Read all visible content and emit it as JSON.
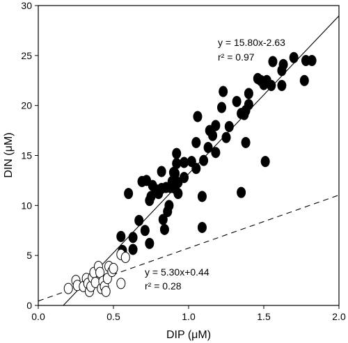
{
  "chart_data": {
    "type": "scatter",
    "xlabel": "DIP (μM)",
    "ylabel": "DIN (μM)",
    "xlim": [
      0,
      2
    ],
    "ylim": [
      0,
      30
    ],
    "xticks": [
      "0.0",
      "0.5",
      "1.0",
      "1.5",
      "2.0"
    ],
    "yticks": [
      "0",
      "5",
      "10",
      "15",
      "20",
      "25",
      "30"
    ],
    "grid": false,
    "series": [
      {
        "marker": "filled-circle",
        "color": "#000000",
        "points": [
          [
            0.55,
            6.9
          ],
          [
            0.56,
            5.5
          ],
          [
            0.6,
            11.2
          ],
          [
            0.63,
            6.8
          ],
          [
            0.63,
            5.6
          ],
          [
            0.67,
            8.5
          ],
          [
            0.69,
            12.4
          ],
          [
            0.71,
            7.5
          ],
          [
            0.72,
            12.5
          ],
          [
            0.74,
            10.5
          ],
          [
            0.74,
            6.2
          ],
          [
            0.75,
            10.9
          ],
          [
            0.76,
            12.0
          ],
          [
            0.78,
            11.6
          ],
          [
            0.8,
            11.2
          ],
          [
            0.82,
            13.4
          ],
          [
            0.82,
            11.7
          ],
          [
            0.83,
            8.6
          ],
          [
            0.84,
            7.6
          ],
          [
            0.85,
            11.8
          ],
          [
            0.86,
            9.4
          ],
          [
            0.87,
            10.0
          ],
          [
            0.88,
            11.8
          ],
          [
            0.89,
            12.4
          ],
          [
            0.9,
            13.3
          ],
          [
            0.91,
            11.7
          ],
          [
            0.91,
            13.2
          ],
          [
            0.92,
            14.2
          ],
          [
            0.92,
            15.2
          ],
          [
            0.93,
            12.3
          ],
          [
            0.93,
            11.2
          ],
          [
            0.97,
            14.3
          ],
          [
            0.97,
            12.8
          ],
          [
            1.02,
            14.4
          ],
          [
            1.05,
            13.7
          ],
          [
            1.05,
            16.3
          ],
          [
            1.06,
            18.9
          ],
          [
            1.09,
            10.9
          ],
          [
            1.09,
            7.8
          ],
          [
            1.1,
            14.5
          ],
          [
            1.13,
            15.8
          ],
          [
            1.14,
            17.5
          ],
          [
            1.16,
            17.0
          ],
          [
            1.18,
            15.3
          ],
          [
            1.18,
            18.0
          ],
          [
            1.22,
            19.8
          ],
          [
            1.23,
            21.4
          ],
          [
            1.25,
            16.8
          ],
          [
            1.27,
            17.9
          ],
          [
            1.32,
            20.4
          ],
          [
            1.35,
            19.2
          ],
          [
            1.35,
            11.3
          ],
          [
            1.37,
            19.1
          ],
          [
            1.38,
            16.3
          ],
          [
            1.38,
            19.5
          ],
          [
            1.4,
            20.1
          ],
          [
            1.4,
            21.2
          ],
          [
            1.46,
            22.7
          ],
          [
            1.48,
            22.5
          ],
          [
            1.5,
            22.1
          ],
          [
            1.51,
            14.4
          ],
          [
            1.52,
            22.5
          ],
          [
            1.55,
            22.0
          ],
          [
            1.56,
            24.4
          ],
          [
            1.62,
            22.0
          ],
          [
            1.62,
            23.5
          ],
          [
            1.63,
            24.1
          ],
          [
            1.7,
            24.8
          ],
          [
            1.77,
            22.5
          ],
          [
            1.78,
            24.5
          ],
          [
            1.82,
            24.5
          ]
        ]
      },
      {
        "marker": "open-circle",
        "color": "#000000",
        "points": [
          [
            0.2,
            1.7
          ],
          [
            0.25,
            2.5
          ],
          [
            0.26,
            2.0
          ],
          [
            0.3,
            1.9
          ],
          [
            0.32,
            2.7
          ],
          [
            0.33,
            2.2
          ],
          [
            0.34,
            1.4
          ],
          [
            0.35,
            1.9
          ],
          [
            0.36,
            2.8
          ],
          [
            0.37,
            3.3
          ],
          [
            0.38,
            2.3
          ],
          [
            0.4,
            3.9
          ],
          [
            0.41,
            3.3
          ],
          [
            0.42,
            1.7
          ],
          [
            0.43,
            2.4
          ],
          [
            0.44,
            1.9
          ],
          [
            0.45,
            1.4
          ],
          [
            0.46,
            2.7
          ],
          [
            0.47,
            3.9
          ],
          [
            0.49,
            3.4
          ],
          [
            0.5,
            3.7
          ],
          [
            0.55,
            2.2
          ],
          [
            0.55,
            5.1
          ],
          [
            0.58,
            4.8
          ]
        ]
      }
    ],
    "fits": [
      {
        "equation": "y = 15.80x-2.63",
        "r2_text": "r² = 0.97",
        "slope": 15.8,
        "intercept": -2.63,
        "style": "solid"
      },
      {
        "equation": "y = 5.30x+0.44",
        "r2_text": "r² = 0.28",
        "slope": 5.3,
        "intercept": 0.44,
        "style": "dashed"
      }
    ]
  }
}
